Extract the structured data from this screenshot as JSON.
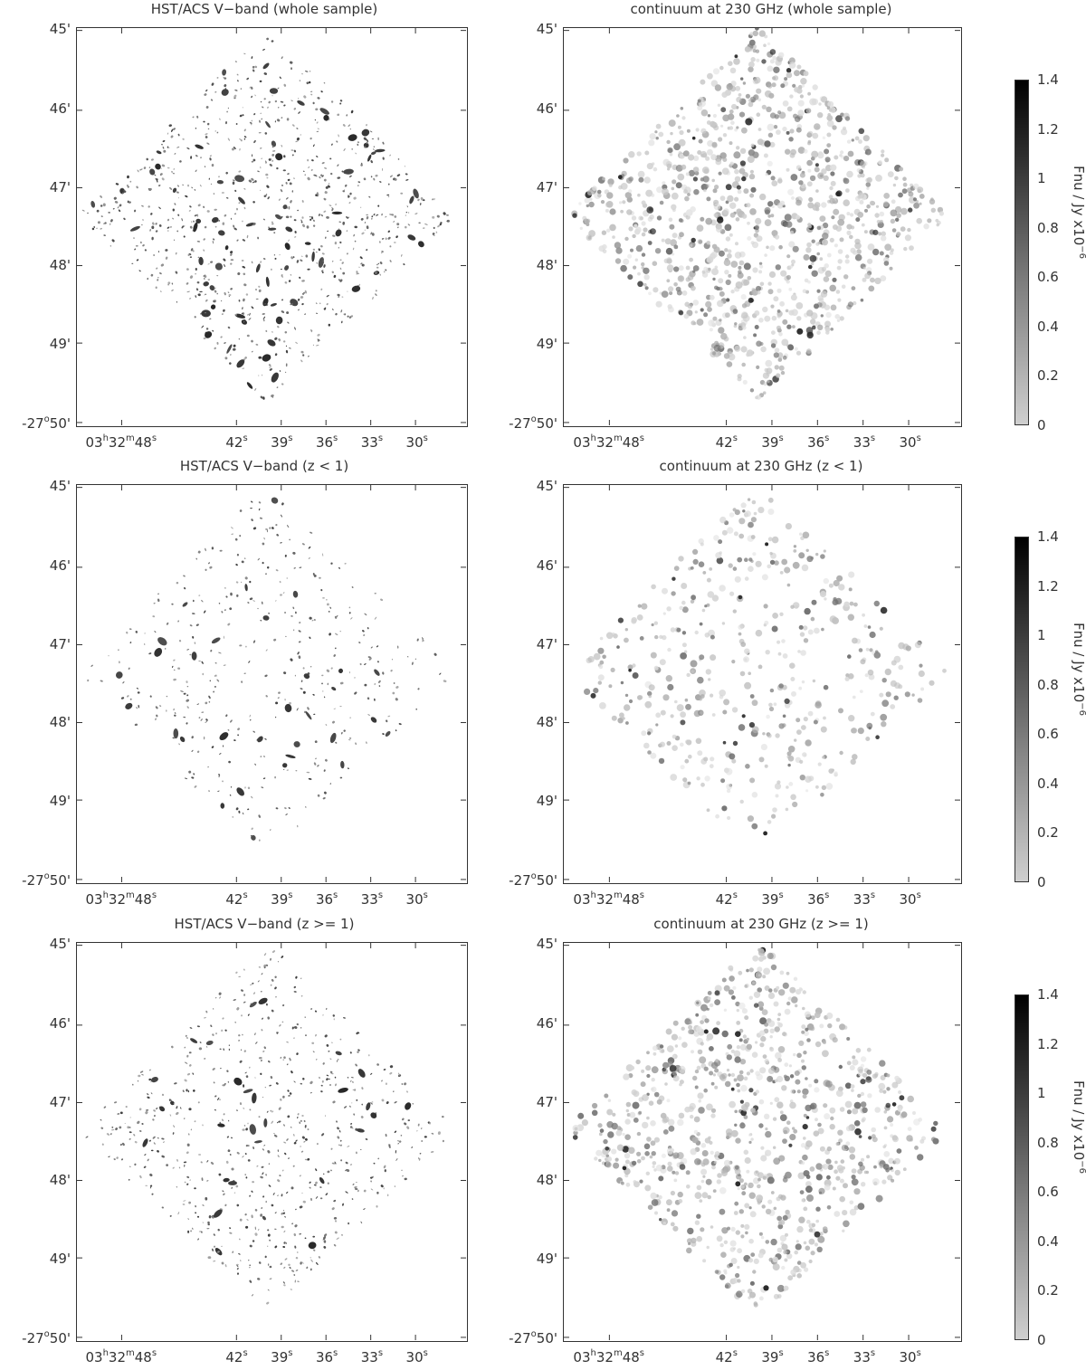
{
  "panels": [
    {
      "id": "hst-whole",
      "title": "HST/ACS V−band (whole sample)",
      "type": "optical",
      "sample": "whole"
    },
    {
      "id": "mm-whole",
      "title": "continuum at 230 GHz (whole sample)",
      "type": "mm",
      "sample": "whole"
    },
    {
      "id": "hst-low",
      "title": "HST/ACS V−band (z < 1)",
      "type": "optical",
      "sample": "low"
    },
    {
      "id": "mm-low",
      "title": "continuum at 230 GHz (z < 1)",
      "type": "mm",
      "sample": "low"
    },
    {
      "id": "hst-high",
      "title": "HST/ACS V−band (z >= 1)",
      "type": "optical",
      "sample": "high"
    },
    {
      "id": "mm-high",
      "title": "continuum at 230 GHz (z >= 1)",
      "type": "mm",
      "sample": "high"
    }
  ],
  "axes": {
    "dec_ticks": [
      {
        "label": "45",
        "unit": "'"
      },
      {
        "label": "46",
        "unit": "'"
      },
      {
        "label": "47",
        "unit": "'"
      },
      {
        "label": "48",
        "unit": "'"
      },
      {
        "label": "49",
        "unit": "'"
      },
      {
        "label": "-27",
        "deg": "o",
        "label2": "50",
        "unit": "'"
      }
    ],
    "ra_ticks": [
      {
        "h": "03",
        "m": "32",
        "s": "48"
      },
      {
        "s": "42"
      },
      {
        "s": "39"
      },
      {
        "s": "36"
      },
      {
        "s": "33"
      },
      {
        "s": "30"
      }
    ],
    "ra_units": {
      "h": "h",
      "m": "m",
      "s": "s"
    }
  },
  "colorbar": {
    "ticks": [
      "1.4",
      "1.2",
      "1",
      "0.8",
      "0.6",
      "0.4",
      "0.2",
      "0"
    ],
    "label": "Fnu / Jy x10",
    "exponent": "−6",
    "colors": {
      "low": "#cfcfcf",
      "high": "#000000"
    }
  },
  "colors": {
    "axis": "#333333",
    "ink": "#222222"
  }
}
